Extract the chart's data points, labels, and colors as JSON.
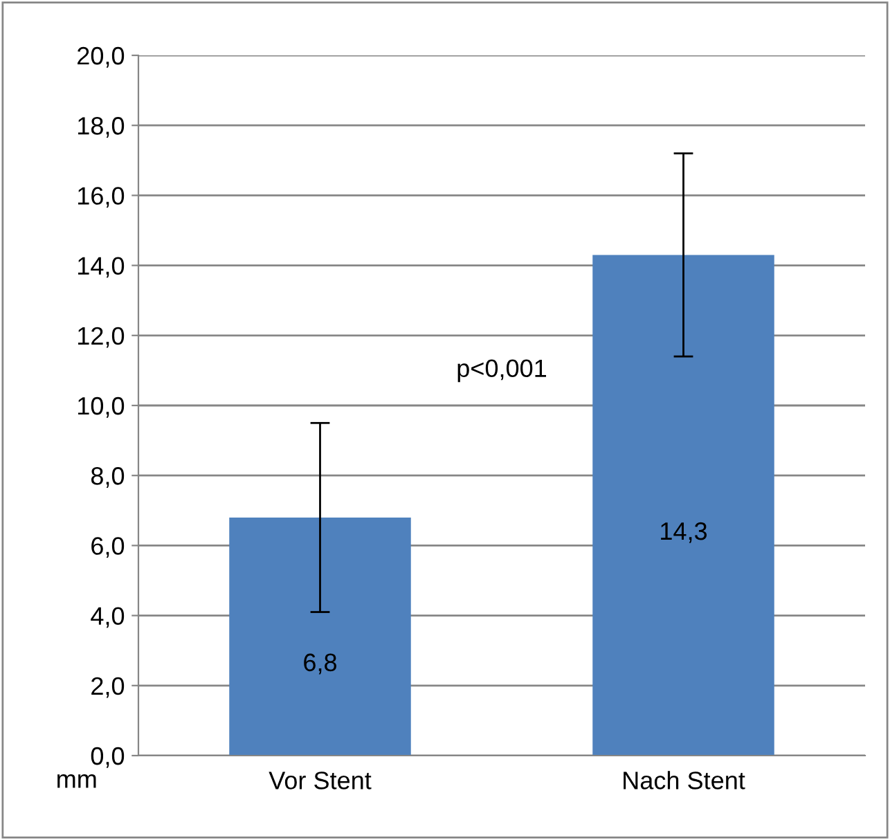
{
  "chart_data": {
    "type": "bar",
    "ylabel": "mm",
    "categories": [
      "Vor Stent",
      "Nach Stent"
    ],
    "series": [
      {
        "color": "#4f81bd",
        "values": [
          6.8,
          14.3
        ],
        "errors": [
          2.7,
          2.9
        ],
        "value_labels": [
          "6,8",
          "14,3"
        ]
      }
    ],
    "ylim": [
      0,
      20
    ],
    "yticks": [
      {
        "value": 0,
        "label": "0,0"
      },
      {
        "value": 2,
        "label": "2,0"
      },
      {
        "value": 4,
        "label": "4,0"
      },
      {
        "value": 6,
        "label": "6,0"
      },
      {
        "value": 8,
        "label": "8,0"
      },
      {
        "value": 10,
        "label": "10,0"
      },
      {
        "value": 12,
        "label": "12,0"
      },
      {
        "value": 14,
        "label": "14,0"
      },
      {
        "value": 16,
        "label": "16,0"
      },
      {
        "value": 18,
        "label": "18,0"
      },
      {
        "value": 20,
        "label": "20,0"
      }
    ],
    "grid": "y",
    "annotations": [
      "p<0,001"
    ]
  }
}
